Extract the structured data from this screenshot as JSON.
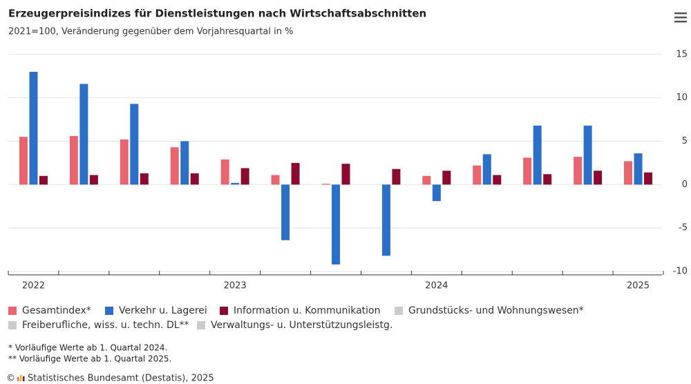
{
  "chart_data": {
    "type": "bar",
    "title": "Erzeugerpreisindizes für Dienstleistungen nach Wirtschaftsabschnitten",
    "subtitle": "2021=100, Veränderung gegenüber dem Vorjahresquartal in %",
    "categories": [
      "2022",
      null,
      null,
      null,
      "2023",
      null,
      null,
      null,
      "2024",
      null,
      null,
      null,
      "2025"
    ],
    "series": [
      {
        "name": "Gesamtindex*",
        "color": "#e8646f",
        "values": [
          5.5,
          5.6,
          5.2,
          4.3,
          2.9,
          1.1,
          0.1,
          0,
          1.0,
          2.2,
          3.1,
          3.2,
          2.7
        ]
      },
      {
        "name": "Verkehr u. Lagerei",
        "color": "#2b6fc6",
        "values": [
          13.0,
          11.6,
          9.3,
          5.0,
          0.2,
          -6.4,
          -9.2,
          -8.2,
          -1.9,
          3.5,
          6.8,
          6.8,
          3.6
        ]
      },
      {
        "name": "Information u. Kommunikation",
        "color": "#8b0a30",
        "values": [
          1.0,
          1.1,
          1.3,
          1.3,
          1.9,
          2.5,
          2.4,
          1.8,
          1.6,
          1.1,
          1.2,
          1.6,
          1.4
        ]
      },
      {
        "name": "Grundstücks- und Wohnungswesen*",
        "color": "#cccccc",
        "visible": false
      },
      {
        "name": "Freiberufliche, wiss. u. techn. DL**",
        "color": "#cccccc",
        "visible": false
      },
      {
        "name": "Verwaltungs- u. Unterstützungsleistg.",
        "color": "#cccccc",
        "visible": false
      }
    ],
    "ylim": [
      -10.4,
      15.3
    ],
    "yticks": [
      -10,
      -5,
      0,
      5,
      10,
      15
    ],
    "grid": true,
    "notes": [
      "* Vorläufige Werte ab 1. Quartal 2024.",
      "** Vorläufige Werte ab 1. Quartal 2025."
    ],
    "source": "Statistisches Bundesamt (Destatis), 2025"
  }
}
